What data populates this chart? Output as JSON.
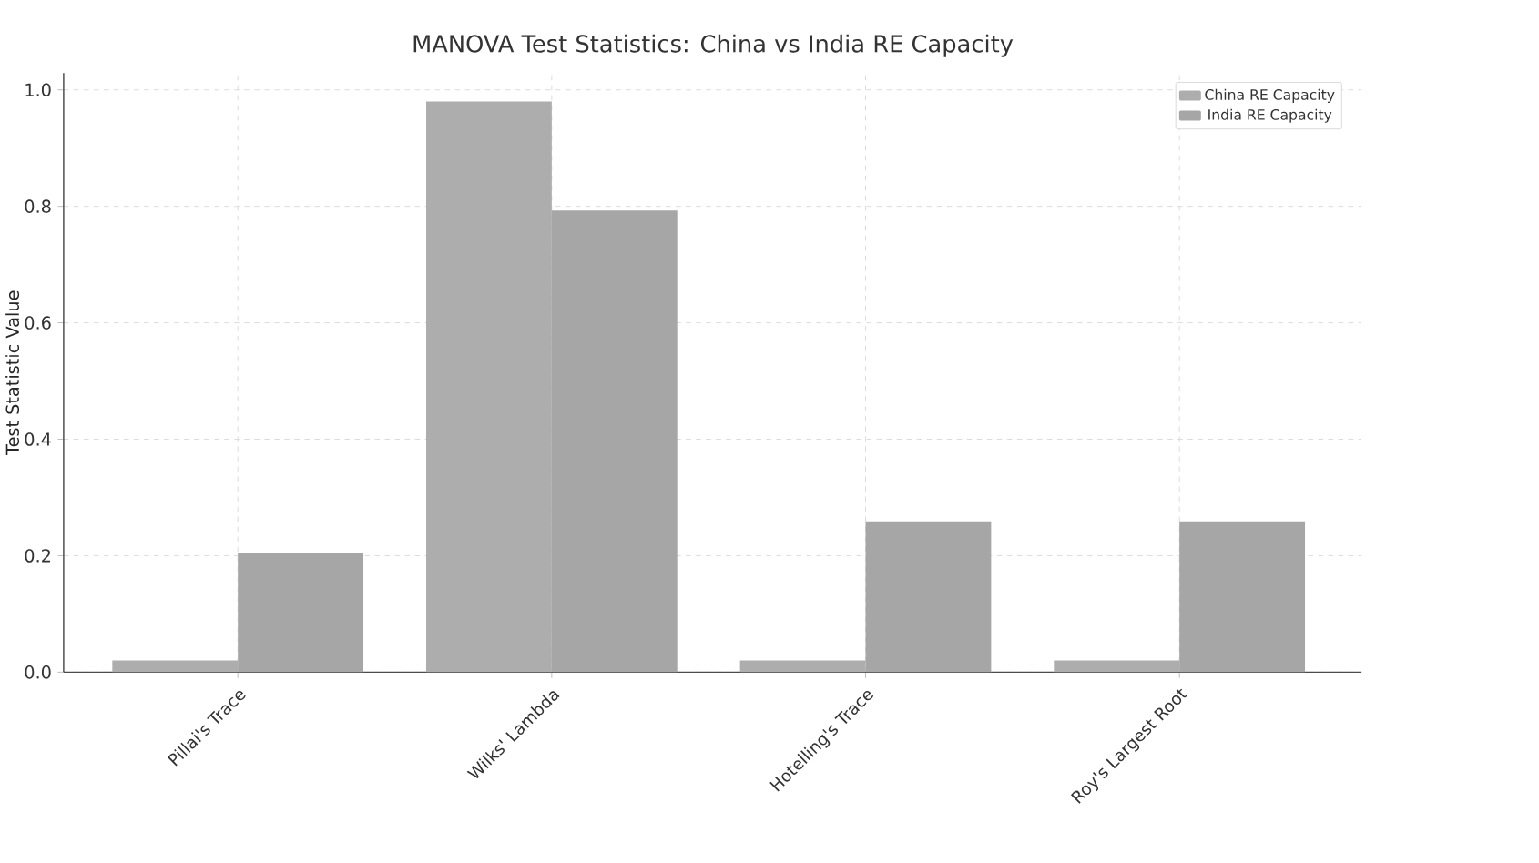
{
  "chart_data": {
    "type": "bar",
    "title": "MANOVA Test Statistics: China vs India RE Capacity",
    "ylabel": "Test Statistic Value",
    "categories": [
      "Pillai's Trace",
      "Wilks' Lambda",
      "Hotelling's Trace",
      "Roy's Largest Root"
    ],
    "series": [
      {
        "name": "China RE Capacity",
        "color": "#adadad",
        "values": [
          0.02,
          0.98,
          0.02,
          0.02
        ]
      },
      {
        "name": "India RE Capacity",
        "color": "#a6a6a6",
        "values": [
          0.204,
          0.793,
          0.259,
          0.259
        ]
      }
    ],
    "ylim": [
      0,
      1.029
    ],
    "yticks": [
      {
        "value": 0,
        "label": "0.0"
      },
      0.2,
      0.4,
      0.6,
      0.8,
      {
        "value": 1,
        "label": "1.0"
      }
    ],
    "grid": true,
    "legend": "top right"
  }
}
